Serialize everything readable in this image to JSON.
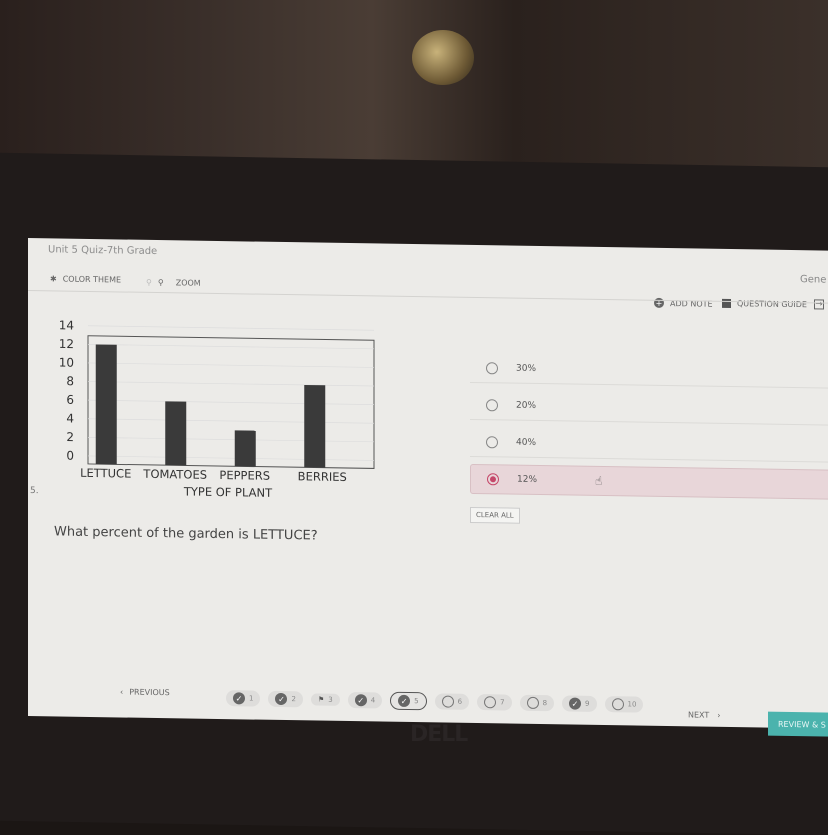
{
  "header": {
    "quiz_title": "Unit 5 Quiz-7th Grade",
    "color_theme": "COLOR THEME",
    "zoom": "ZOOM",
    "user_partial": "Gene",
    "add_note": "ADD NOTE",
    "question_guide": "QUESTION GUIDE"
  },
  "question": {
    "number": "5.",
    "text": "What percent of the garden is LETTUCE?"
  },
  "options": [
    {
      "label": "30%",
      "selected": false
    },
    {
      "label": "20%",
      "selected": false
    },
    {
      "label": "40%",
      "selected": false
    },
    {
      "label": "12%",
      "selected": true
    }
  ],
  "clear_all": "CLEAR ALL",
  "nav": {
    "previous": "PREVIOUS",
    "next": "NEXT",
    "review": "REVIEW & S",
    "questions": [
      {
        "n": "1",
        "state": "answered"
      },
      {
        "n": "2",
        "state": "answered"
      },
      {
        "n": "3",
        "state": "flagged"
      },
      {
        "n": "4",
        "state": "answered"
      },
      {
        "n": "5",
        "state": "current-answered"
      },
      {
        "n": "6",
        "state": "unanswered"
      },
      {
        "n": "7",
        "state": "unanswered"
      },
      {
        "n": "8",
        "state": "unanswered"
      },
      {
        "n": "9",
        "state": "answered"
      },
      {
        "n": "10",
        "state": "unanswered"
      }
    ]
  },
  "brand": "DELL",
  "chart_data": {
    "type": "bar",
    "categories": [
      "LETTUCE",
      "TOMATOES",
      "PEPPERS",
      "BERRIES"
    ],
    "values": [
      12,
      6,
      3,
      8
    ],
    "xlabel": "TYPE OF PLANT",
    "ylabel": "",
    "ylim": [
      0,
      14
    ],
    "yticks": [
      "0",
      "2",
      "4",
      "6",
      "8",
      "10",
      "12",
      "14"
    ],
    "grid": true,
    "bar_color": "#3a3a3a"
  }
}
